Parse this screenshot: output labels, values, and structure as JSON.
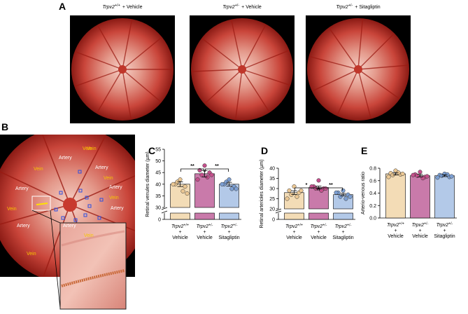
{
  "panel_a": {
    "label": "A",
    "images": [
      {
        "gene": "Trpv2",
        "genotype": "+/+",
        "treatment": "+ Vehicle"
      },
      {
        "gene": "Trpv2",
        "genotype": "+/-",
        "treatment": "+ Vehicle"
      },
      {
        "gene": "Trpv2",
        "genotype": "+/-",
        "treatment": "+ Sitagliptin"
      }
    ]
  },
  "panel_b": {
    "label": "B",
    "annotations": [
      {
        "text": "Vein",
        "kind": "vein"
      },
      {
        "text": "Artery",
        "kind": "artery"
      },
      {
        "text": "Artery",
        "kind": "artery"
      },
      {
        "text": "Vein",
        "kind": "vein"
      },
      {
        "text": "Vein",
        "kind": "vein"
      },
      {
        "text": "Artery",
        "kind": "artery"
      },
      {
        "text": "Artery",
        "kind": "artery"
      },
      {
        "text": "Vein",
        "kind": "vein"
      },
      {
        "text": "Artery",
        "kind": "artery"
      },
      {
        "text": "Vein",
        "kind": "vein"
      },
      {
        "text": "Artery",
        "kind": "artery"
      },
      {
        "text": "Artery",
        "kind": "artery"
      },
      {
        "text": "Vein",
        "kind": "vein"
      },
      {
        "text": "Vein",
        "kind": "vein"
      },
      {
        "text": "Vein",
        "kind": "vein"
      }
    ]
  },
  "chart_data": [
    {
      "type": "bar",
      "panel": "C",
      "ylabel": "Retinal venules diameter (µm)",
      "gene": "Trpv2",
      "connector": "+",
      "genotypes": [
        "+/+",
        "+/-",
        "+/-"
      ],
      "categories": [
        "Vehicle",
        "Vehicle",
        "Sitagliptin"
      ],
      "colors": [
        "#f3dcb6",
        "#c97aaa",
        "#b3c9e8"
      ],
      "point_colors": [
        "#ecc894",
        "#c4508c",
        "#7c9fd3"
      ],
      "values": [
        40,
        44.5,
        40
      ],
      "errors": [
        1,
        1.4,
        0.8
      ],
      "points": [
        [
          42,
          40,
          39,
          41,
          37,
          40,
          36
        ],
        [
          48,
          46,
          45,
          44,
          43,
          42,
          44
        ],
        [
          42,
          40,
          39,
          41,
          38,
          40,
          38
        ]
      ],
      "ylim": [
        30,
        55
      ],
      "yticks": [
        30,
        35,
        40,
        45,
        50,
        55
      ],
      "ylim_lower": [
        0,
        2
      ],
      "yticks_lower": [
        0
      ],
      "comparisons": [
        {
          "pair": [
            0,
            1
          ],
          "label": "**"
        },
        {
          "pair": [
            1,
            2
          ],
          "label": "**"
        }
      ]
    },
    {
      "type": "bar",
      "panel": "D",
      "ylabel": "Retinal arterioles diameter (µm)",
      "gene": "Trpv2",
      "connector": "+",
      "genotypes": [
        "+/+",
        "+/-",
        "+/-"
      ],
      "categories": [
        "Vehicle",
        "Vehicle",
        "Sitagliptin"
      ],
      "colors": [
        "#f3dcb6",
        "#c97aaa",
        "#b3c9e8"
      ],
      "point_colors": [
        "#ecc894",
        "#c4508c",
        "#7c9fd3"
      ],
      "values": [
        28,
        30.5,
        27
      ],
      "errors": [
        0.9,
        0.7,
        0.6
      ],
      "points": [
        [
          31,
          29,
          28,
          27,
          26,
          25,
          29
        ],
        [
          34,
          31,
          30,
          30,
          29,
          31,
          30
        ],
        [
          29,
          28,
          27,
          26,
          25,
          28,
          26
        ]
      ],
      "ylim": [
        20,
        40
      ],
      "yticks": [
        20,
        25,
        30,
        35,
        40
      ],
      "ylim_lower": [
        0,
        2
      ],
      "yticks_lower": [
        0
      ],
      "comparisons": [
        {
          "pair": [
            0,
            1
          ],
          "label": "*"
        },
        {
          "pair": [
            1,
            2
          ],
          "label": "**"
        }
      ]
    },
    {
      "type": "bar",
      "panel": "E",
      "ylabel": "Arterio-venous ratio",
      "gene": "Trpv2",
      "connector": "+",
      "genotypes": [
        "+/+",
        "+/-",
        "+/-"
      ],
      "categories": [
        "Vehicle",
        "Vehicle",
        "Sitagliptin"
      ],
      "colors": [
        "#f3dcb6",
        "#c97aaa",
        "#b3c9e8"
      ],
      "point_colors": [
        "#ecc894",
        "#c4508c",
        "#7c9fd3"
      ],
      "values": [
        0.71,
        0.68,
        0.68
      ],
      "errors": [
        0.02,
        0.02,
        0.015
      ],
      "points": [
        [
          0.76,
          0.72,
          0.7,
          0.69,
          0.73,
          0.66,
          0.71
        ],
        [
          0.74,
          0.7,
          0.66,
          0.68,
          0.64,
          0.69,
          0.67
        ],
        [
          0.71,
          0.69,
          0.66,
          0.68,
          0.7,
          0.65,
          0.67
        ]
      ],
      "ylim": [
        0,
        0.8
      ],
      "yticks": [
        {
          "value": 0,
          "label": "0.0"
        },
        0.2,
        0.4,
        0.6,
        0.8
      ]
    }
  ]
}
